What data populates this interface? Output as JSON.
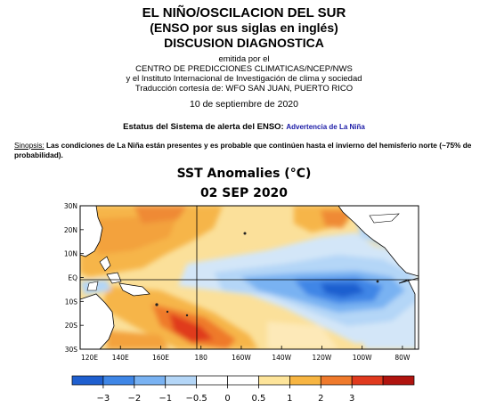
{
  "header": {
    "title_line1": "EL NIÑO/OSCILACION DEL SUR",
    "title_line2": "(ENSO por sus siglas en inglés)",
    "title_line3": "DISCUSION DIAGNOSTICA",
    "issued_by": "emitida por el",
    "center": "CENTRO DE PREDICCIONES CLIMATICAS/NCEP/NWS",
    "institute": "y el Instituto Internacional de Investigación de clima y sociedad",
    "translation": "Traducción cortesía de: WFO SAN JUAN, PUERTO RICO",
    "date": "10 de septiembre de 2020"
  },
  "status": {
    "label": "Estatus del Sistema de alerta del ENSO:",
    "value": "Advertencia de La Niña"
  },
  "synopsis": {
    "label": "Sinopsis:",
    "text": "Las condiciones de La Niña están presentes y es probable que continúen hasta el invierno del hemisferio norte (~75% de probabilidad)."
  },
  "map": {
    "title": "SST Anomalies (°C)",
    "date": "02 SEP 2020",
    "lat_labels": [
      "30N",
      "20N",
      "10N",
      "EQ",
      "10S",
      "20S",
      "30S"
    ],
    "lon_labels": [
      "120E",
      "140E",
      "160E",
      "180",
      "160W",
      "140W",
      "120W",
      "100W",
      "80W"
    ]
  },
  "colorbar": {
    "tick_labels": [
      "−3",
      "−2",
      "−1",
      "−0.5",
      "0",
      "0.5",
      "1",
      "2",
      "3"
    ],
    "colors": [
      "#1f5fcf",
      "#3f86e6",
      "#79b2f2",
      "#b4d6f7",
      "#ffffff",
      "#ffffff",
      "#fde49a",
      "#f7b542",
      "#ef7a2c",
      "#e03a1e",
      "#b0140f"
    ]
  }
}
